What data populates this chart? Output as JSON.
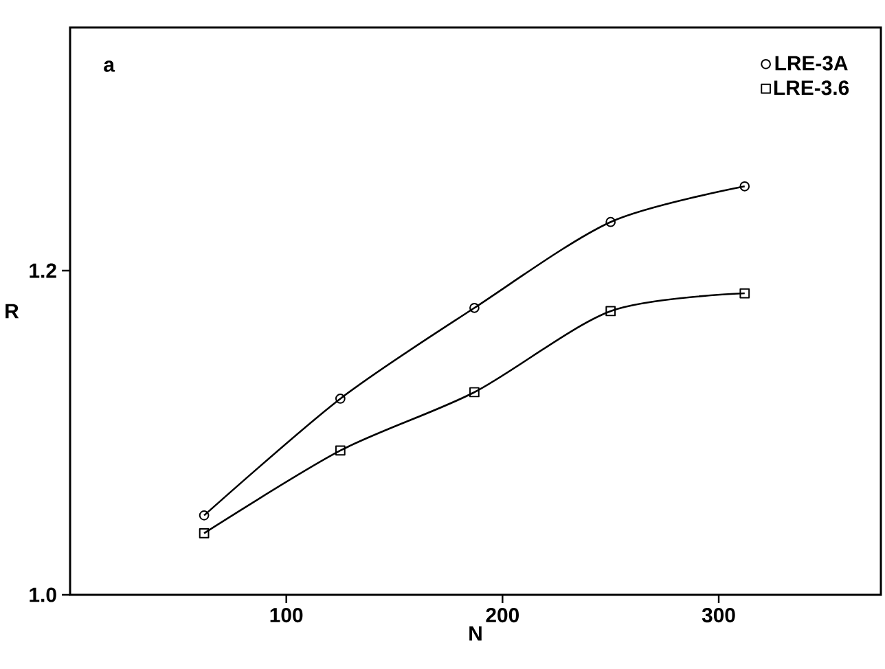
{
  "chart_data": {
    "type": "line",
    "xlabel": "N",
    "ylabel": "R",
    "annotations": [
      "a"
    ],
    "xlim": [
      0,
      375
    ],
    "ylim": [
      1.0,
      1.35
    ],
    "xticks": [
      100,
      200,
      300
    ],
    "yticks": [
      {
        "value": 1.0,
        "label": "1.0"
      },
      1.2
    ],
    "grid": false,
    "legend": "top right",
    "line_style": "solid",
    "series": [
      {
        "name": "LRE-3A",
        "color": "#000000",
        "marker": "circle",
        "x": [
          62,
          125,
          187,
          250,
          312
        ],
        "values": [
          1.049,
          1.121,
          1.177,
          1.23,
          1.252
        ]
      },
      {
        "name": "LRE-3.6",
        "color": "#000000",
        "marker": "square",
        "x": [
          62,
          125,
          187,
          250,
          312
        ],
        "values": [
          1.038,
          1.089,
          1.125,
          1.175,
          1.186
        ]
      }
    ]
  }
}
